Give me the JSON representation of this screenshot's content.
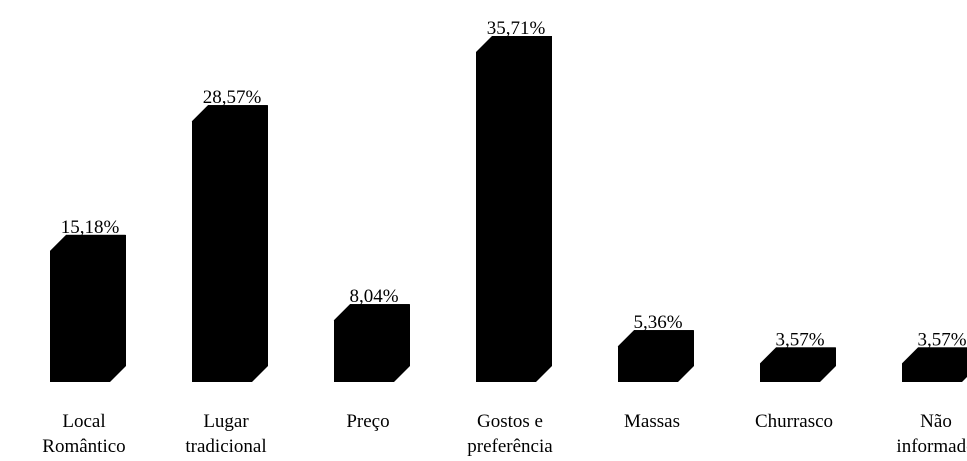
{
  "chart_data": {
    "type": "bar",
    "style": "3d-column",
    "categories": [
      [
        "Local",
        "Romântico"
      ],
      [
        "Lugar",
        "tradicional"
      ],
      [
        "Preço"
      ],
      [
        "Gostos e",
        "preferência"
      ],
      [
        "Massas"
      ],
      [
        "Churrasco"
      ],
      [
        "Não",
        "informado"
      ]
    ],
    "values": [
      15.18,
      28.57,
      8.04,
      35.71,
      5.36,
      3.57,
      3.57
    ],
    "value_labels": [
      "15,18%",
      "28,57%",
      "8,04%",
      "35,71%",
      "5,36%",
      "3,57%",
      "3,57%"
    ],
    "title": "",
    "xlabel": "",
    "ylabel": "",
    "ylim": [
      0,
      35.71
    ],
    "grid": false,
    "legend": "none",
    "bar_color": "#000000",
    "background": "#ffffff"
  }
}
